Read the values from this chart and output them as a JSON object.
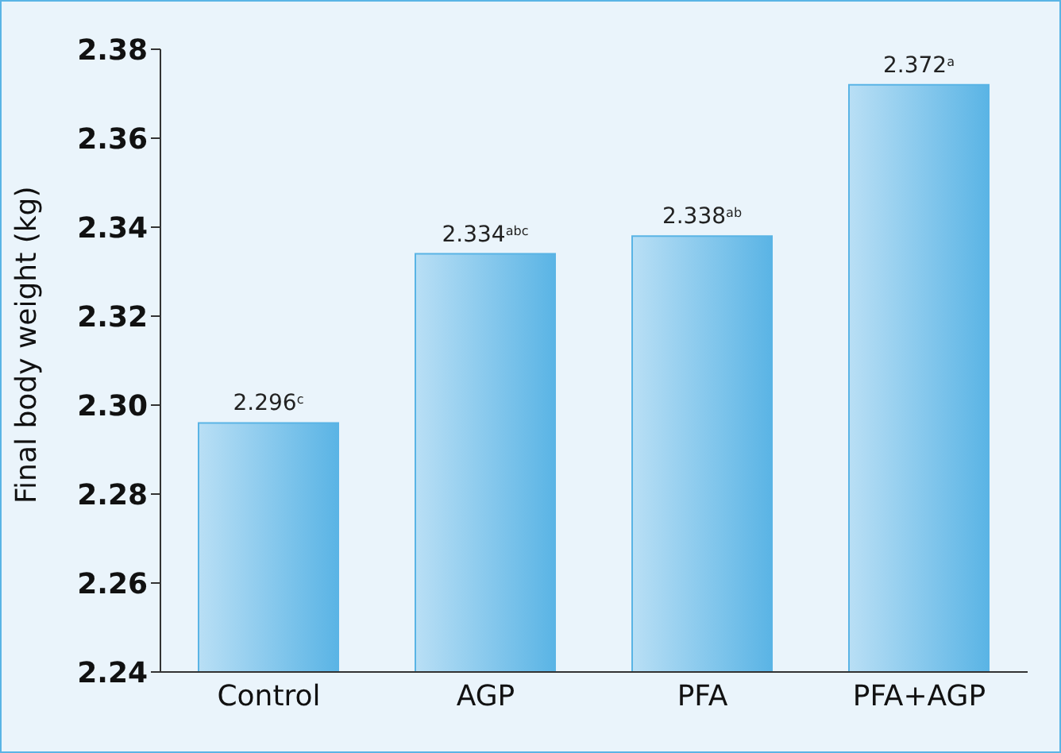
{
  "chart_data": {
    "type": "bar",
    "ylabel": "Final body weight (kg)",
    "categories": [
      "Control",
      "AGP",
      "PFA",
      "PFA+AGP"
    ],
    "values": [
      2.296,
      2.334,
      2.338,
      2.372
    ],
    "value_labels": [
      "2.296$^{c}$",
      "2.334$^{abc}$",
      "2.338$^{ab}$",
      "2.372$^{a}$"
    ],
    "color": "#5ab4e5",
    "ylim": [
      2.24,
      2.38
    ],
    "yticks": [
      {
        "value": 2.24,
        "label": "2.24"
      },
      {
        "value": 2.26,
        "label": "2.26"
      },
      {
        "value": 2.28,
        "label": "2.28"
      },
      {
        "value": 2.3,
        "label": "2.30"
      },
      {
        "value": 2.32,
        "label": "2.32"
      },
      {
        "value": 2.34,
        "label": "2.34"
      },
      {
        "value": 2.36,
        "label": "2.36"
      },
      {
        "value": 2.38,
        "label": "2.38"
      }
    ],
    "grid": false,
    "legend": false
  }
}
